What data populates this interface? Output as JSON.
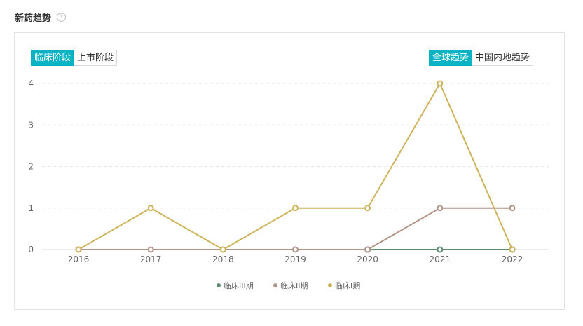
{
  "header": {
    "title": "新药趋势",
    "help_glyph": "?"
  },
  "stage_toggle": {
    "options": [
      "临床阶段",
      "上市阶段"
    ],
    "selected": 0
  },
  "region_toggle": {
    "options": [
      "全球趋势",
      "中国内地趋势"
    ],
    "selected": 0
  },
  "colors": {
    "accent": "#0ab3c3",
    "phase3": "#5b8c6e",
    "phase2": "#b09488",
    "phase1": "#cdb45a"
  },
  "chart_data": {
    "type": "line",
    "title": "",
    "xlabel": "",
    "ylabel": "",
    "categories": [
      "2016",
      "2017",
      "2018",
      "2019",
      "2020",
      "2021",
      "2022"
    ],
    "ylim": [
      0,
      4
    ],
    "yticks": [
      "0",
      "1",
      "2",
      "3",
      "4"
    ],
    "grid": true,
    "legend_position": "bottom",
    "series": [
      {
        "name": "临床III期",
        "color": "#5b8c6e",
        "values": [
          null,
          null,
          null,
          null,
          0,
          0,
          0
        ]
      },
      {
        "name": "临床II期",
        "color": "#b09488",
        "values": [
          0,
          0,
          0,
          0,
          0,
          1,
          1
        ]
      },
      {
        "name": "临床I期",
        "color": "#cdb45a",
        "values": [
          0,
          1,
          0,
          1,
          1,
          4,
          0
        ]
      }
    ]
  }
}
